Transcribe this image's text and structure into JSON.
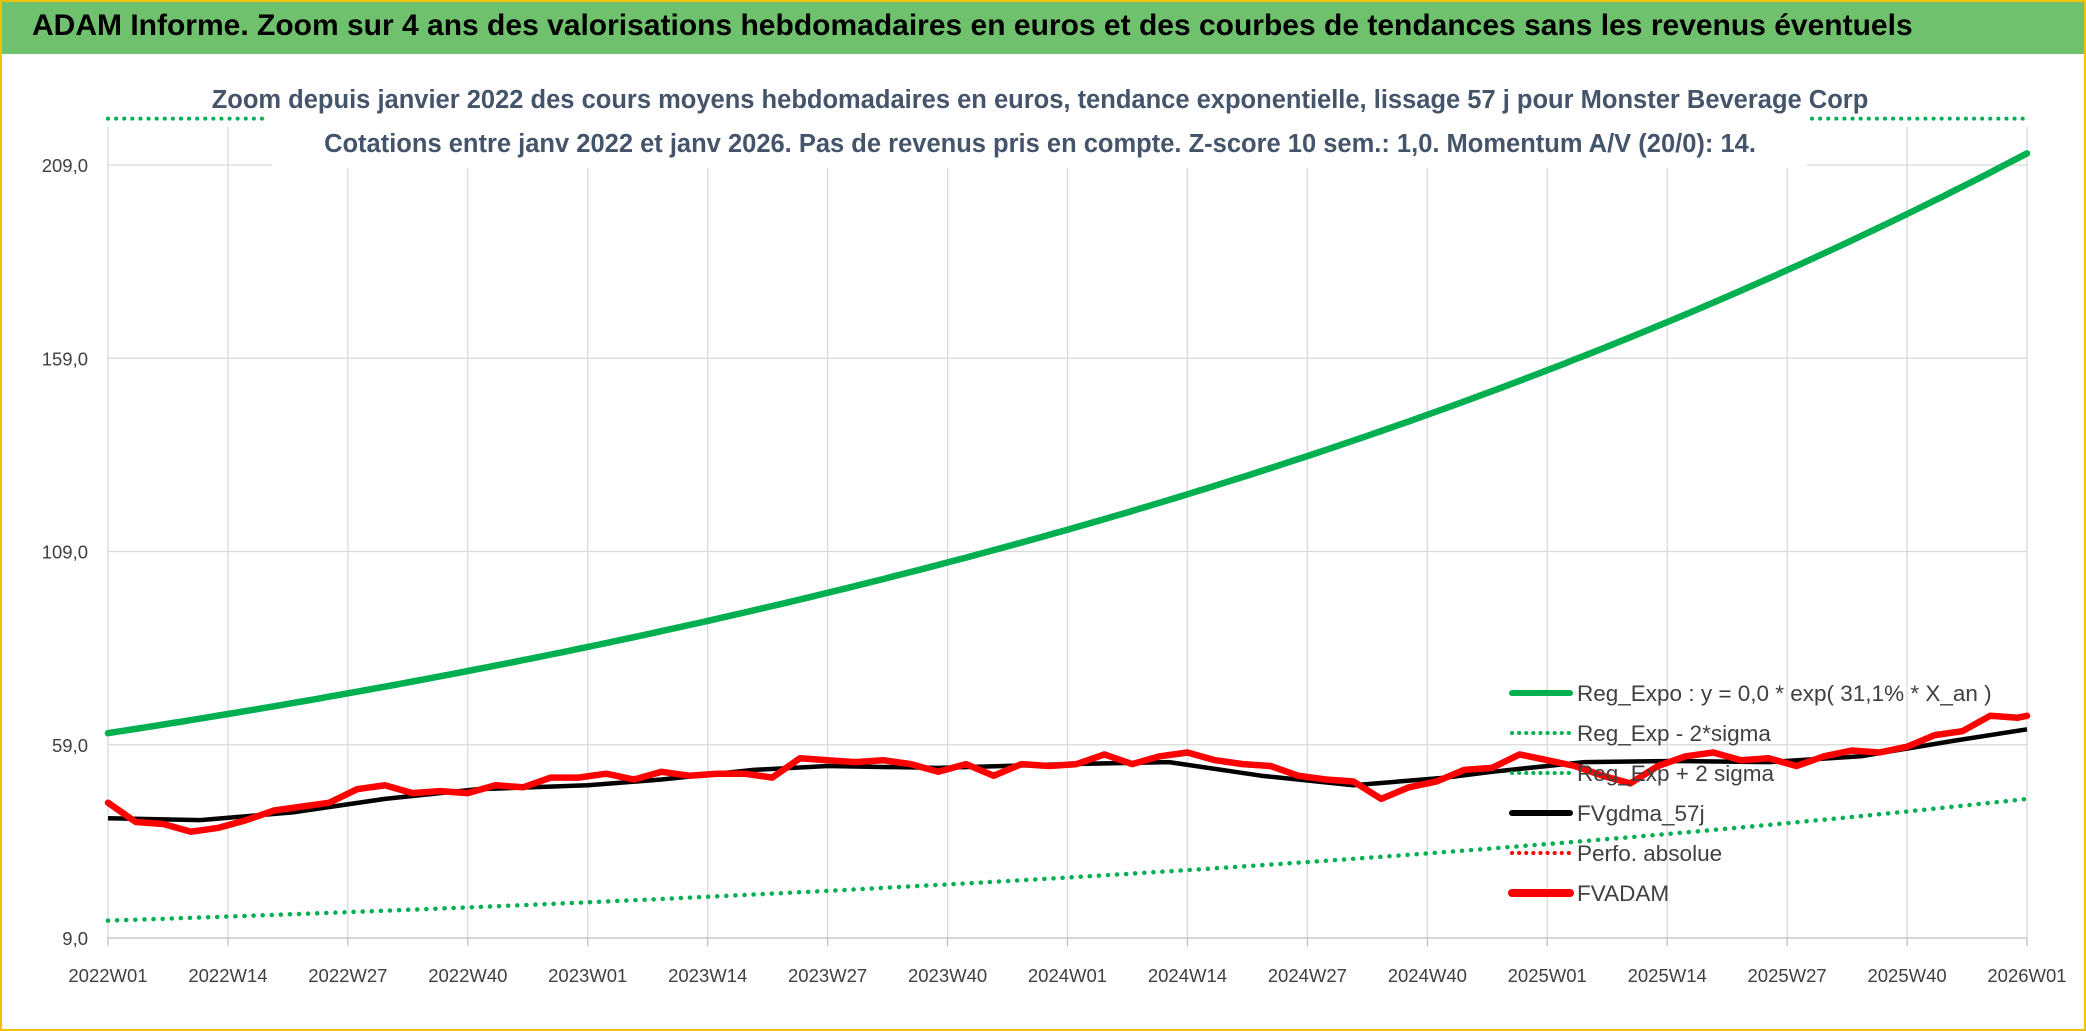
{
  "banner": {
    "title": "ADAM Informe. Zoom sur 4 ans des valorisations hebdomadaires en euros et des courbes de tendances sans les revenus éventuels"
  },
  "colors": {
    "green": "#00b050",
    "black": "#000000",
    "red": "#ff0000",
    "banner": "#70c16e",
    "border": "#f2c200"
  },
  "chart_data": {
    "type": "line",
    "subtitle_line1": "Zoom depuis janvier 2022 des cours moyens hebdomadaires en euros, tendance exponentielle, lissage 57 j pour Monster Beverage Corp",
    "subtitle_line2": "Cotations entre janv 2022 et janv 2026. Pas de revenus pris en compte. Z-score 10 sem.: 1,0. Momentum A/V (20/0): 14.",
    "x_tick_labels": [
      "2022W01",
      "2022W14",
      "2022W27",
      "2022W40",
      "2023W01",
      "2023W14",
      "2023W27",
      "2023W40",
      "2024W01",
      "2024W14",
      "2024W27",
      "2024W40",
      "2025W01",
      "2025W14",
      "2025W27",
      "2025W40",
      "2026W01"
    ],
    "y_tick_labels": [
      "9,0",
      "59,0",
      "109,0",
      "159,0",
      "209,0"
    ],
    "y_ticks": [
      9,
      59,
      109,
      159,
      209
    ],
    "ylim": [
      9,
      209
    ],
    "grid": true,
    "legend_position": "bottom-right",
    "legend": [
      {
        "label": "Reg_Expo : y = 0,0 * exp( 31,1% *  X_an )",
        "color": "#00b050",
        "style": "solid"
      },
      {
        "label": "Reg_Exp - 2*sigma",
        "color": "#00b050",
        "style": "dotted"
      },
      {
        "label": "Reg_Exp + 2 sigma",
        "color": "#00b050",
        "style": "dotted"
      },
      {
        "label": "FVgdma_57j",
        "color": "#000000",
        "style": "solid"
      },
      {
        "label": "Perfo. absolue",
        "color": "#ff0000",
        "style": "dotted"
      },
      {
        "label": "FVADAM",
        "color": "#ff0000",
        "style": "solid-thick"
      }
    ],
    "series": [
      {
        "name": "Reg_Expo : y = 0,0 * exp( 31,1% *  X_an )",
        "x": [
          0,
          208
        ],
        "y": [
          62.0,
          212.0
        ]
      },
      {
        "name": "Reg_Exp - 2*sigma",
        "x": [
          0,
          208
        ],
        "y": [
          13.5,
          45.0
        ]
      },
      {
        "name": "Reg_Exp + 2 sigma",
        "x": [
          0,
          208
        ],
        "y": [
          221.0,
          221.0
        ]
      },
      {
        "name": "FVgdma_57j",
        "x": [
          0,
          10,
          20,
          30,
          40,
          52,
          60,
          70,
          78,
          90,
          104,
          115,
          125,
          135,
          145,
          150,
          160,
          170,
          180,
          190,
          200,
          208
        ],
        "y": [
          40,
          39.5,
          41.5,
          45.0,
          47.5,
          48.5,
          50.0,
          52.5,
          53.5,
          53.0,
          54.0,
          54.5,
          51.0,
          48.5,
          50.5,
          52.0,
          54.5,
          54.8,
          54.5,
          56.0,
          60.0,
          63.0
        ]
      },
      {
        "name": "FVADAM",
        "x": [
          0,
          3,
          6,
          9,
          12,
          15,
          18,
          21,
          24,
          27,
          30,
          33,
          36,
          39,
          42,
          45,
          48,
          51,
          54,
          57,
          60,
          63,
          66,
          69,
          72,
          75,
          78,
          81,
          84,
          87,
          90,
          93,
          96,
          99,
          102,
          105,
          108,
          111,
          114,
          117,
          120,
          123,
          126,
          129,
          132,
          135,
          138,
          141,
          144,
          147,
          150,
          153,
          156,
          159,
          162,
          165,
          168,
          171,
          174,
          177,
          180,
          183,
          186,
          189,
          192,
          195,
          198,
          201,
          204,
          207,
          208
        ],
        "y": [
          44.0,
          39.0,
          38.5,
          36.5,
          37.5,
          39.5,
          42.0,
          43.0,
          44.0,
          47.5,
          48.5,
          46.5,
          47.0,
          46.5,
          48.5,
          48.0,
          50.5,
          50.5,
          51.5,
          50.0,
          52.0,
          51.0,
          51.5,
          51.5,
          50.5,
          55.5,
          55.0,
          54.5,
          55.0,
          54.0,
          52.0,
          54.0,
          51.0,
          54.0,
          53.5,
          54.0,
          56.5,
          54.0,
          56.0,
          57.0,
          55.0,
          54.0,
          53.5,
          51.0,
          50.0,
          49.5,
          45.0,
          48.0,
          49.5,
          52.5,
          53.0,
          56.5,
          55.0,
          53.5,
          51.0,
          49.0,
          53.5,
          56.0,
          57.0,
          55.0,
          55.5,
          53.5,
          56.0,
          57.5,
          57.0,
          58.5,
          61.5,
          62.5,
          66.5,
          66.0,
          66.5
        ]
      }
    ]
  }
}
